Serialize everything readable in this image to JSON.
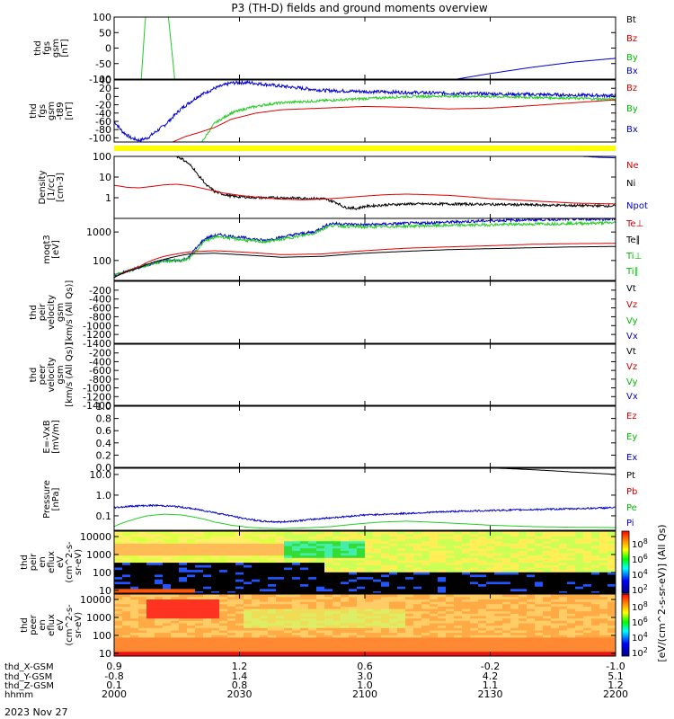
{
  "title": "P3 (TH-D) fields and ground moments overview",
  "date_label": "2023 Nov 27",
  "chart_data": {
    "type": "line",
    "title": "P3 (TH-D) fields and ground moments overview",
    "x_range": [
      0,
      120
    ],
    "x_units": "minutes after 20:00 UT",
    "ephemeris": [
      {
        "label": "thd_X-GSM",
        "values": [
          "0.9",
          "1.2",
          "0.6",
          "-0.2",
          "-1.0"
        ]
      },
      {
        "label": "thd_Y-GSM",
        "values": [
          "-0.8",
          "1.4",
          "3.0",
          "4.2",
          "5.1"
        ]
      },
      {
        "label": "thd_Z-GSM",
        "values": [
          "0.1",
          "0.8",
          "1.0",
          "1.1",
          "1.2"
        ]
      },
      {
        "label": "hhmm",
        "values": [
          "2000",
          "2030",
          "2100",
          "2130",
          "2200"
        ]
      }
    ],
    "panels": [
      {
        "id": "fgs",
        "ylabel_lines": [
          "thd",
          "fgs",
          "gsm",
          "[nT]"
        ],
        "scale": "linear",
        "ylim": [
          -100,
          100
        ],
        "ticks": [
          "100",
          "50",
          "0",
          "-50",
          "-100"
        ],
        "tick_values": [
          100,
          50,
          0,
          -50,
          -100
        ],
        "legend": [
          {
            "label": "Bt",
            "color": "#000000"
          },
          {
            "label": "Bz",
            "color": "#cc0000"
          },
          {
            "label": "By",
            "color": "#00bb00"
          },
          {
            "label": "Bx",
            "color": "#0000cc"
          }
        ],
        "series": [
          {
            "name": "By",
            "color": "#22cc22",
            "t": [
              6.5,
              7.5,
              13,
              14.5
            ],
            "y": [
              -100,
              100,
              100,
              -100
            ]
          },
          {
            "name": "Bx",
            "color": "#0000cc",
            "t": [
              82,
              90,
              100,
              110,
              120
            ],
            "y": [
              -100,
              -82,
              -62,
              -45,
              -33
            ]
          }
        ]
      },
      {
        "id": "fgs-t89",
        "ylabel_lines": [
          "thd",
          "fgs",
          "gsm",
          "-t89",
          "[nT]"
        ],
        "scale": "linear",
        "ylim": [
          -110,
          40
        ],
        "ticks": [
          "40",
          "20",
          "0",
          "-20",
          "-40",
          "-60",
          "-80",
          "-100"
        ],
        "tick_values": [
          40,
          20,
          0,
          -20,
          -40,
          -60,
          -80,
          -100
        ],
        "legend": [
          {
            "label": "Bz",
            "color": "#cc0000"
          },
          {
            "label": "By",
            "color": "#00bb00"
          },
          {
            "label": "Bx",
            "color": "#0000cc"
          }
        ],
        "series": [
          {
            "name": "Bx",
            "color": "#0000cc",
            "noise": 4,
            "t": [
              0,
              2,
              4,
              6,
              8,
              12,
              16,
              20,
              24,
              28,
              32,
              40,
              50,
              60,
              80,
              100,
              120
            ],
            "y": [
              -60,
              -85,
              -100,
              -106,
              -100,
              -70,
              -30,
              0,
              20,
              33,
              34,
              25,
              15,
              12,
              8,
              5,
              2
            ]
          },
          {
            "name": "By",
            "color": "#22cc22",
            "noise": 3,
            "t": [
              21,
              24,
              28,
              32,
              36,
              40,
              50,
              60,
              70,
              80,
              90,
              100,
              110,
              120
            ],
            "y": [
              -110,
              -65,
              -40,
              -28,
              -20,
              -15,
              -10,
              -5,
              0,
              1,
              0,
              -2,
              -4,
              -7
            ]
          },
          {
            "name": "Bz",
            "color": "#dd0000",
            "noise": 0,
            "t": [
              14,
              17,
              20,
              24,
              28,
              34,
              40,
              50,
              60,
              70,
              80,
              90,
              100,
              110,
              120
            ],
            "y": [
              -110,
              -97,
              -88,
              -75,
              -55,
              -40,
              -32,
              -28,
              -24,
              -26,
              -30,
              -28,
              -22,
              -15,
              -8
            ]
          }
        ],
        "flag_bar_color": "#ffff00"
      },
      {
        "id": "density",
        "ylabel_lines": [
          "Density",
          "[1/cc]",
          "[cm-3]"
        ],
        "scale": "log",
        "ylim": [
          0.1,
          100
        ],
        "ticks": [
          "100",
          "10",
          "1"
        ],
        "tick_values": [
          100,
          10,
          1
        ],
        "legend": [
          {
            "label": "Ne",
            "color": "#cc0000"
          },
          {
            "label": "Ni",
            "color": "#000000"
          },
          {
            "label": "Npot",
            "color": "#0000cc"
          }
        ],
        "series": [
          {
            "name": "Ni",
            "color": "#000000",
            "noise": 0.06,
            "t": [
              15,
              18,
              20,
              22,
              24,
              26,
              28,
              30,
              35,
              40,
              45,
              50,
              53,
              55,
              58,
              60,
              65,
              70,
              80,
              90,
              100,
              110,
              120
            ],
            "y": [
              100,
              40,
              12,
              4,
              2,
              1.5,
              1.2,
              1.1,
              1.0,
              1.0,
              0.95,
              0.9,
              0.6,
              0.35,
              0.3,
              0.38,
              0.45,
              0.5,
              0.5,
              0.48,
              0.45,
              0.42,
              0.4
            ]
          },
          {
            "name": "Ne",
            "color": "#dd0000",
            "noise": 0,
            "t": [
              0,
              3,
              6,
              9,
              12,
              15,
              18,
              22,
              26,
              30,
              35,
              40,
              45,
              50,
              55,
              60,
              65,
              70,
              80,
              90,
              100,
              110,
              120
            ],
            "y": [
              4,
              3.2,
              3.0,
              3.5,
              4.2,
              4.5,
              3.8,
              2.6,
              1.7,
              1.3,
              1.0,
              0.85,
              0.8,
              0.85,
              1.0,
              1.2,
              1.4,
              1.5,
              1.3,
              0.9,
              0.7,
              0.55,
              0.5
            ]
          },
          {
            "name": "Npot",
            "color": "#0000cc",
            "noise": 0,
            "t": [
              112,
              116,
              120
            ],
            "y": [
              100,
              90,
              85
            ]
          }
        ]
      },
      {
        "id": "temperature",
        "ylabel_lines": [
          "moqt3",
          "[eV]"
        ],
        "scale": "log",
        "ylim": [
          20,
          3000
        ],
        "ticks": [
          "1000",
          "100"
        ],
        "tick_values": [
          1000,
          100
        ],
        "legend": [
          {
            "label": "Te⊥",
            "color": "#cc0000"
          },
          {
            "label": "Te∥",
            "color": "#000000"
          },
          {
            "label": "Ti⊥",
            "color": "#00bb00"
          },
          {
            "label": "Ti∥",
            "color": "#00bb00"
          }
        ],
        "series": [
          {
            "name": "Ti⊥ (blue)",
            "color": "#0000cc",
            "noise": 0.05,
            "t": [
              0,
              4,
              8,
              12,
              14,
              16,
              18,
              20,
              22,
              25,
              28,
              32,
              36,
              40,
              44,
              48,
              50,
              52,
              55,
              60,
              70,
              80,
              90,
              100,
              110,
              120
            ],
            "y": [
              30,
              45,
              70,
              100,
              100,
              100,
              130,
              300,
              600,
              800,
              700,
              600,
              500,
              650,
              850,
              1000,
              1500,
              2000,
              1900,
              1800,
              2000,
              2200,
              2500,
              2700,
              2800,
              2900
            ]
          },
          {
            "name": "Ti∥",
            "color": "#22cc22",
            "noise": 0.05,
            "t": [
              0,
              4,
              8,
              12,
              14,
              16,
              18,
              20,
              22,
              25,
              28,
              32,
              36,
              40,
              44,
              48,
              50,
              52,
              55,
              60,
              70,
              80,
              90,
              100,
              110,
              120
            ],
            "y": [
              30,
              45,
              70,
              95,
              100,
              100,
              120,
              250,
              500,
              700,
              600,
              500,
              450,
              550,
              700,
              900,
              1300,
              1700,
              1600,
              1500,
              1600,
              1700,
              1800,
              1900,
              2000,
              2100
            ]
          },
          {
            "name": "Te⊥",
            "color": "#dd0000",
            "noise": 0,
            "t": [
              0,
              6,
              12,
              18,
              24,
              30,
              40,
              50,
              60,
              70,
              80,
              90,
              100,
              110,
              120
            ],
            "y": [
              25,
              60,
              140,
              200,
              220,
              200,
              160,
              170,
              220,
              270,
              300,
              330,
              370,
              390,
              400
            ]
          },
          {
            "name": "Te∥",
            "color": "#000000",
            "noise": 0,
            "t": [
              0,
              6,
              12,
              18,
              24,
              30,
              40,
              50,
              60,
              70,
              80,
              90,
              100,
              110,
              120
            ],
            "y": [
              25,
              55,
              110,
              170,
              180,
              160,
              130,
              140,
              180,
              210,
              240,
              260,
              280,
              300,
              310
            ]
          }
        ]
      },
      {
        "id": "peir-velocity",
        "ylabel_lines": [
          "thd",
          "peir",
          "velocity",
          "gsm",
          "[km/s (All Qs)]"
        ],
        "scale": "linear",
        "ylim": [
          -1400,
          0
        ],
        "ticks": [
          "-200",
          "-400",
          "-600",
          "-800",
          "-1000",
          "-1200",
          "-1400"
        ],
        "tick_values": [
          -200,
          -400,
          -600,
          -800,
          -1000,
          -1200,
          -1400
        ],
        "legend": [
          {
            "label": "Vt",
            "color": "#000000"
          },
          {
            "label": "Vz",
            "color": "#cc0000"
          },
          {
            "label": "Vy",
            "color": "#00bb00"
          },
          {
            "label": "Vx",
            "color": "#0000cc"
          }
        ],
        "series": []
      },
      {
        "id": "peer-velocity",
        "ylabel_lines": [
          "thd",
          "peer",
          "velocity",
          "gsm",
          "[km/s (All Qs)]"
        ],
        "scale": "linear",
        "ylim": [
          -1400,
          0
        ],
        "ticks": [
          "-200",
          "-400",
          "-600",
          "-800",
          "-1000",
          "-1200",
          "-1400"
        ],
        "tick_values": [
          -200,
          -400,
          -600,
          -800,
          -1000,
          -1200,
          -1400
        ],
        "legend": [
          {
            "label": "Vt",
            "color": "#000000"
          },
          {
            "label": "Vz",
            "color": "#cc0000"
          },
          {
            "label": "Vy",
            "color": "#00bb00"
          },
          {
            "label": "Vx",
            "color": "#0000cc"
          }
        ],
        "series": []
      },
      {
        "id": "efield",
        "ylabel_lines": [
          "E=-VxB",
          "[mV/m]"
        ],
        "scale": "linear",
        "ylim": [
          0,
          1
        ],
        "ticks": [
          "1.0",
          "0.8",
          "0.6",
          "0.4",
          "0.2",
          "0.0"
        ],
        "tick_values": [
          1,
          0.8,
          0.6,
          0.4,
          0.2,
          0
        ],
        "legend": [
          {
            "label": "Ez",
            "color": "#cc0000"
          },
          {
            "label": "Ey",
            "color": "#00bb00"
          },
          {
            "label": "Ex",
            "color": "#0000cc"
          }
        ],
        "series": []
      },
      {
        "id": "pressure",
        "ylabel_lines": [
          "Pressure",
          "[nPa]"
        ],
        "scale": "log",
        "ylim": [
          0.02,
          20
        ],
        "ticks": [
          "10.0",
          "1.0",
          "0.1"
        ],
        "tick_values": [
          10,
          1,
          0.1
        ],
        "legend": [
          {
            "label": "Pt",
            "color": "#000000"
          },
          {
            "label": "Pb",
            "color": "#cc0000"
          },
          {
            "label": "Pe",
            "color": "#00bb00"
          },
          {
            "label": "Pi",
            "color": "#0000cc"
          }
        ],
        "series": [
          {
            "name": "Pi",
            "color": "#0000cc",
            "noise": 0.04,
            "t": [
              0,
              5,
              10,
              15,
              20,
              25,
              30,
              35,
              40,
              45,
              50,
              55,
              60,
              70,
              80,
              90,
              100,
              110,
              120
            ],
            "y": [
              0.25,
              0.3,
              0.32,
              0.28,
              0.2,
              0.13,
              0.08,
              0.055,
              0.05,
              0.06,
              0.075,
              0.09,
              0.11,
              0.13,
              0.16,
              0.18,
              0.2,
              0.22,
              0.25
            ]
          },
          {
            "name": "Pe",
            "color": "#22cc22",
            "noise": 0,
            "t": [
              0,
              4,
              8,
              12,
              16,
              20,
              24,
              28,
              32,
              36,
              40,
              46,
              52,
              58,
              64,
              70,
              80,
              90,
              100,
              110,
              120
            ],
            "y": [
              0.03,
              0.06,
              0.1,
              0.12,
              0.11,
              0.08,
              0.05,
              0.035,
              0.028,
              0.025,
              0.024,
              0.026,
              0.03,
              0.04,
              0.05,
              0.055,
              0.045,
              0.035,
              0.03,
              0.028,
              0.027
            ]
          },
          {
            "name": "Pt",
            "color": "#000000",
            "noise": 0,
            "t": [
              92,
              100,
              110,
              120
            ],
            "y": [
              20,
              17,
              13,
              10
            ]
          }
        ]
      },
      {
        "id": "peir-spectrogram",
        "type": "heatmap",
        "ylabel_lines": [
          "thd",
          "peir",
          "en",
          "eflux",
          "eV",
          "(cm^2-s-",
          "sr-eV)"
        ],
        "scale": "log",
        "ylim": [
          7,
          20000
        ],
        "ticks": [
          "10000",
          "1000",
          "100",
          "10"
        ],
        "tick_values": [
          10000,
          1000,
          100,
          10
        ]
      },
      {
        "id": "peer-spectrogram",
        "type": "heatmap",
        "ylabel_lines": [
          "thd",
          "peer",
          "en",
          "eflux",
          "eV",
          "(cm^2-s-",
          "sr-eV)"
        ],
        "scale": "log",
        "ylim": [
          7,
          20000
        ],
        "ticks": [
          "10000",
          "1000",
          "100",
          "10"
        ],
        "tick_values": [
          10000,
          1000,
          100,
          10
        ]
      }
    ],
    "colorbar": {
      "label": "[eV/(cm^2-s-sr-eV)] (All Qs)",
      "ticks": [
        "10^8",
        "10^6",
        "10^4",
        "10^2",
        "10^8",
        "10^6",
        "10^4",
        "10^2"
      ]
    }
  }
}
